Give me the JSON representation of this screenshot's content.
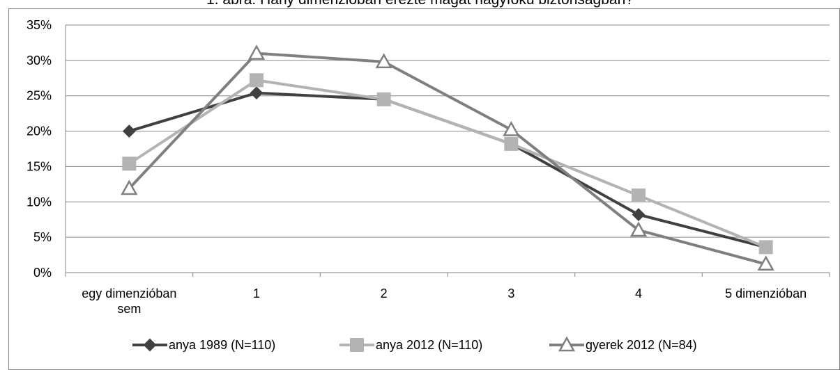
{
  "chart_data": {
    "type": "line",
    "title": "1. ábra: Hány dimenzióban érezte magát nagyfokú biztonságban?",
    "xlabel": "",
    "ylabel": "",
    "categories": [
      [
        "egy dimenzióban",
        "sem"
      ],
      [
        "1"
      ],
      [
        "2"
      ],
      [
        "3"
      ],
      [
        "4"
      ],
      [
        "5 dimenzióban"
      ]
    ],
    "ylim": [
      0,
      35
    ],
    "yticks": [
      "0%",
      "5%",
      "10%",
      "15%",
      "20%",
      "25%",
      "30%",
      "35%"
    ],
    "grid": "horizontal",
    "legend_position": "bottom",
    "series": [
      {
        "name": "anya 1989 (N=110)",
        "values": [
          20.0,
          25.4,
          24.5,
          18.2,
          8.2,
          3.6
        ],
        "color": "#404040",
        "marker": "diamond"
      },
      {
        "name": "anya 2012 (N=110)",
        "values": [
          15.4,
          27.2,
          24.5,
          18.2,
          10.9,
          3.6
        ],
        "color": "#b3b3b3",
        "marker": "square"
      },
      {
        "name": "gyerek 2012 (N=84)",
        "values": [
          11.9,
          31.0,
          29.8,
          20.2,
          6.0,
          1.2
        ],
        "color": "#7f7f7f",
        "marker": "triangle"
      }
    ]
  }
}
